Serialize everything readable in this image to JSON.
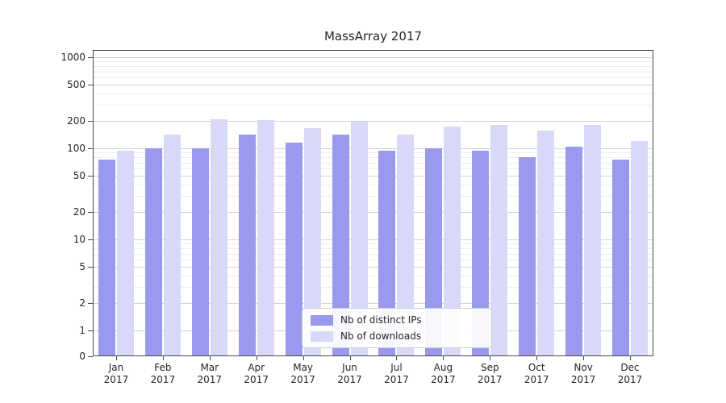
{
  "title": "MassArray 2017",
  "chart_data": {
    "type": "bar",
    "title": "MassArray 2017",
    "xlabel": "",
    "ylabel": "",
    "yscale": "symlog",
    "ylim": [
      0,
      1200
    ],
    "yticks": [
      0,
      1,
      2,
      5,
      10,
      20,
      50,
      100,
      200,
      500,
      1000
    ],
    "grid": true,
    "legend_position": "lower center",
    "categories": [
      "Jan 2017",
      "Feb 2017",
      "Mar 2017",
      "Apr 2017",
      "May 2017",
      "Jun 2017",
      "Jul 2017",
      "Aug 2017",
      "Sep 2017",
      "Oct 2017",
      "Nov 2017",
      "Dec 2017"
    ],
    "series": [
      {
        "name": "Nb of distinct IPs",
        "color": "#9999ed",
        "values": [
          75,
          100,
          100,
          140,
          115,
          140,
          95,
          100,
          95,
          80,
          105,
          75
        ]
      },
      {
        "name": "Nb of downloads",
        "color": "#d8d8f8",
        "values": [
          95,
          140,
          210,
          205,
          165,
          195,
          140,
          175,
          180,
          155,
          180,
          120
        ]
      }
    ]
  }
}
